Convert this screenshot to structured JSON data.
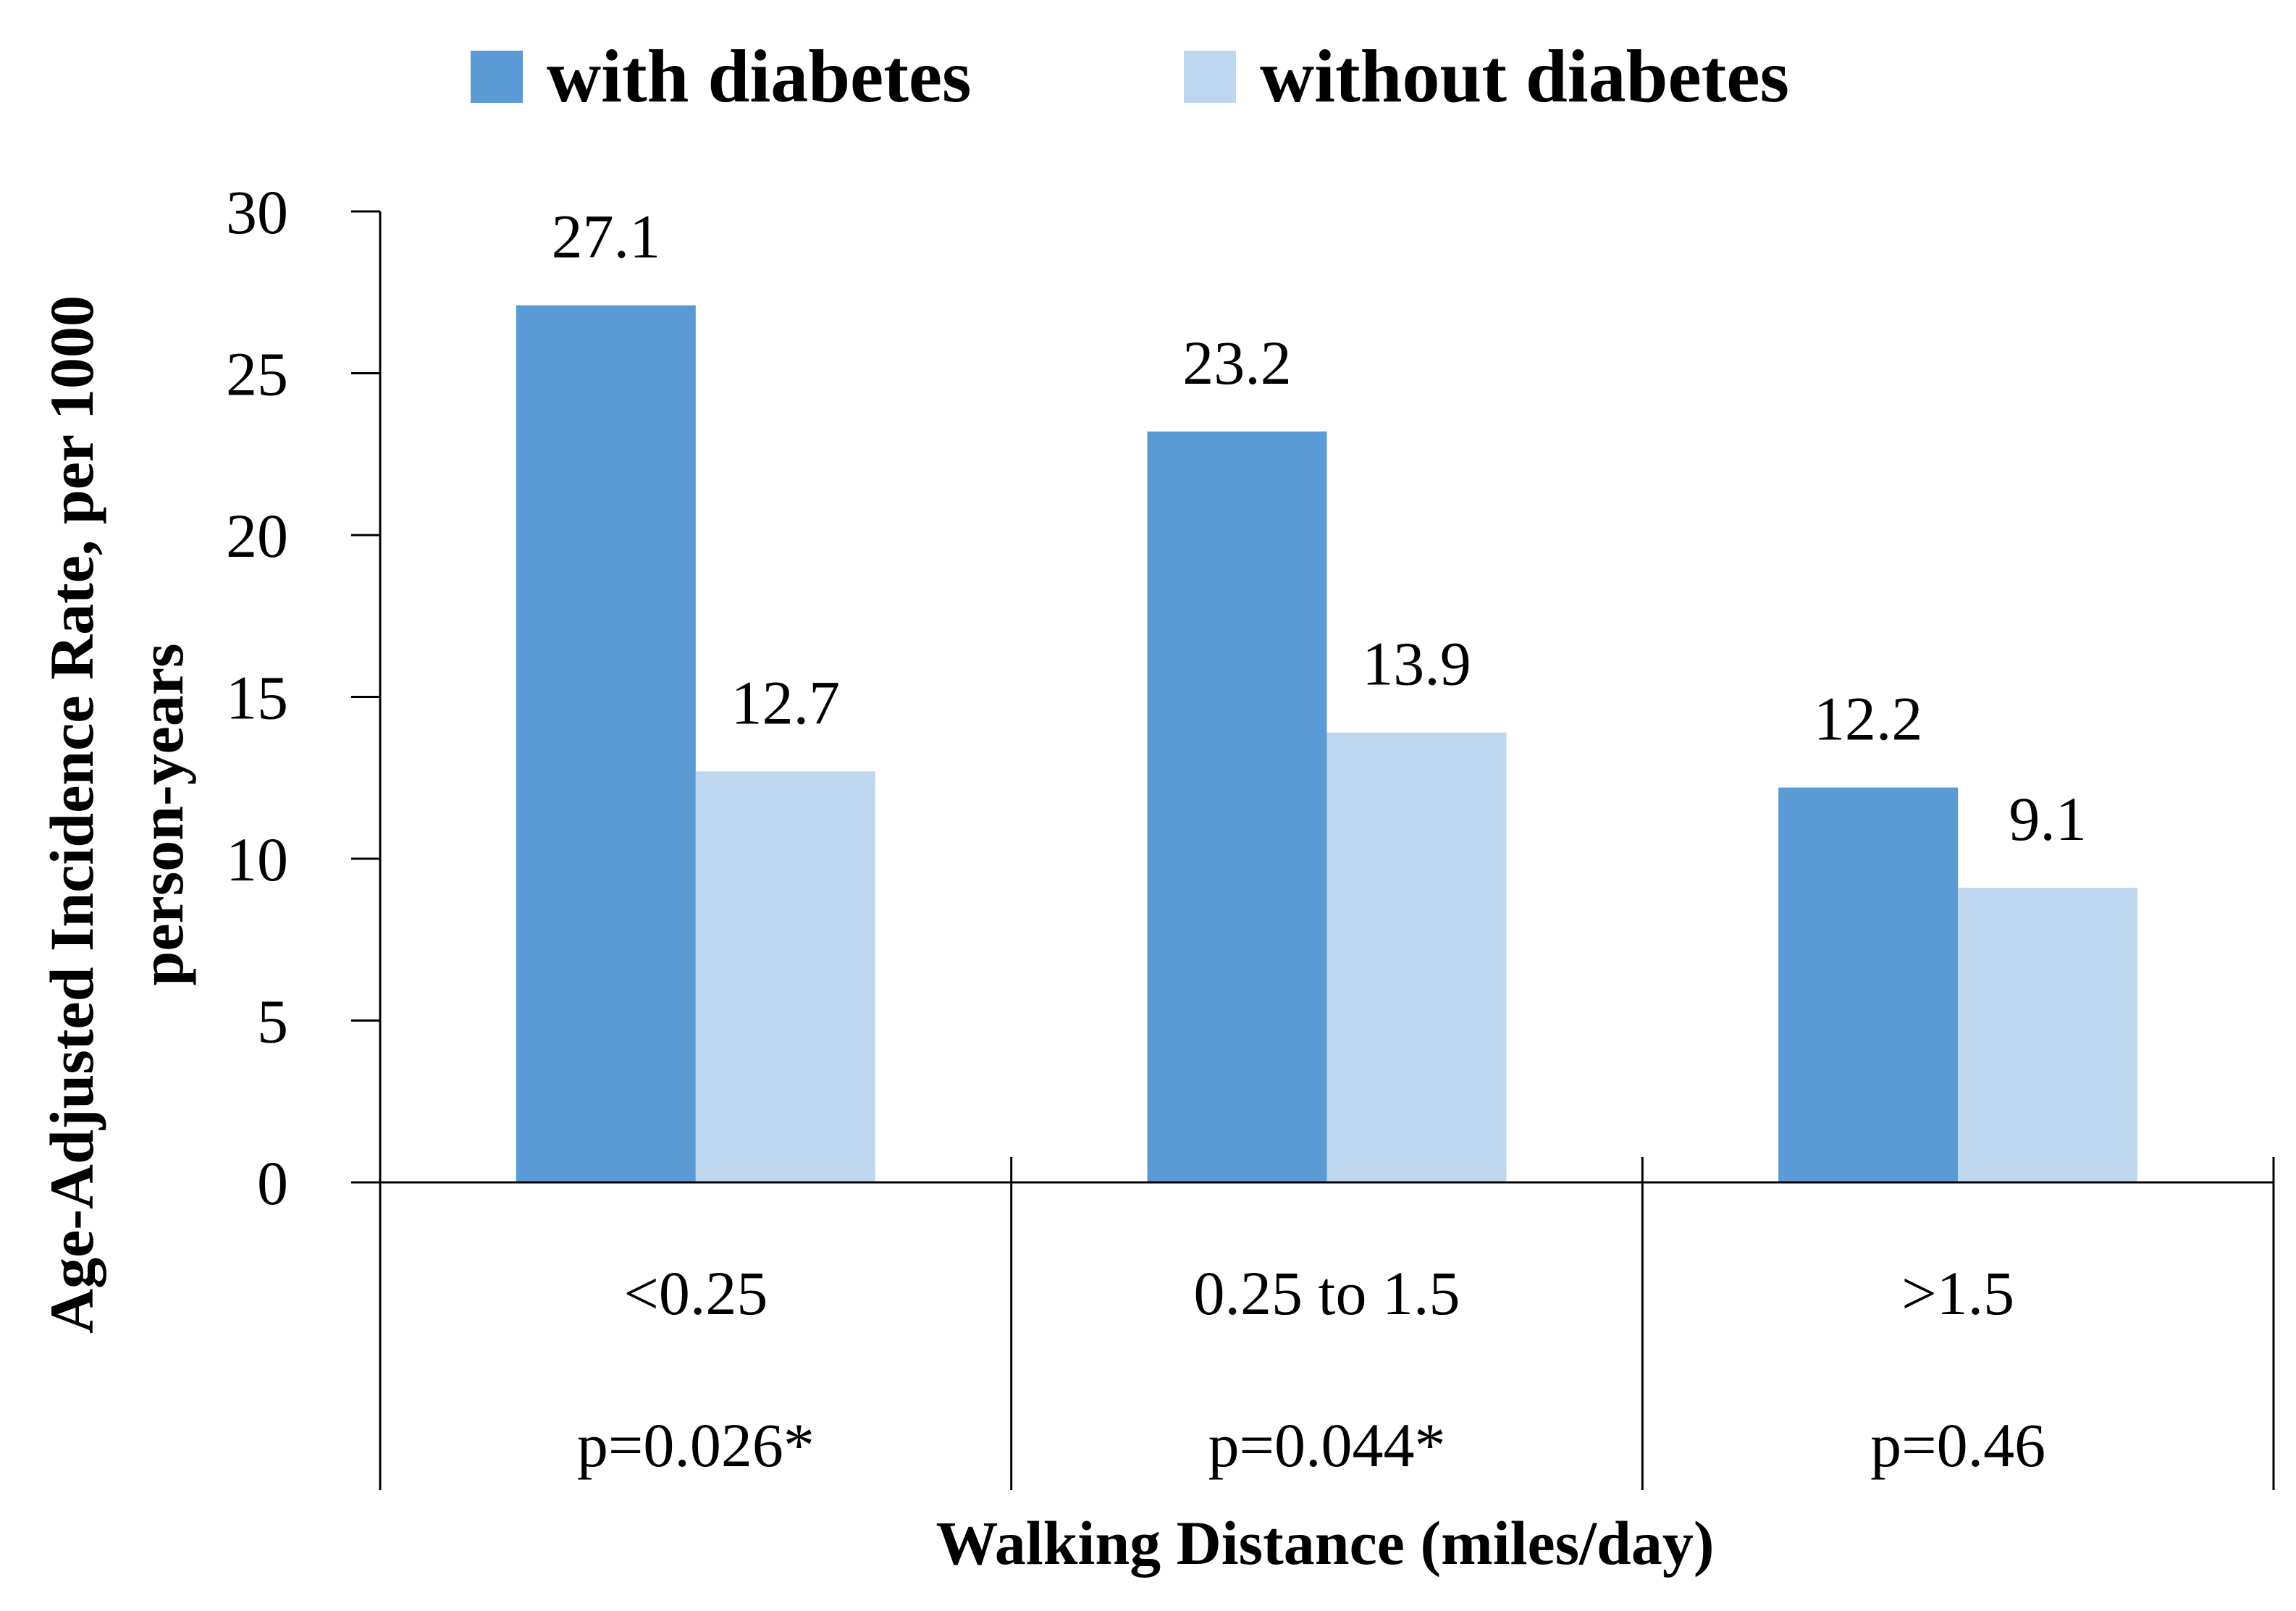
{
  "chart_data": {
    "type": "bar",
    "title": "",
    "xlabel": "Walking Distance (miles/day)",
    "ylabel_line1": "Age-Adjusted Incidence Rate, per 1000",
    "ylabel_line2": "person-years",
    "categories": [
      "<0.25",
      "0.25 to 1.5",
      ">1.5"
    ],
    "p_values": [
      "p=0.026*",
      "p=0.044*",
      "p=0.46"
    ],
    "series": [
      {
        "name": "with diabetes",
        "color": "#5b9bd5",
        "values": [
          27.1,
          23.2,
          12.2
        ],
        "labels": [
          "27.1",
          "23.2",
          "12.2"
        ]
      },
      {
        "name": "without diabetes",
        "color": "#bdd7ee",
        "values": [
          12.7,
          13.9,
          9.1
        ],
        "labels": [
          "12.7",
          "13.9",
          "9.1"
        ]
      }
    ],
    "ylim": [
      0,
      30
    ],
    "yticks": [
      "0",
      "5",
      "10",
      "15",
      "20",
      "25",
      "30"
    ],
    "grid": false,
    "legend_position": "top"
  }
}
